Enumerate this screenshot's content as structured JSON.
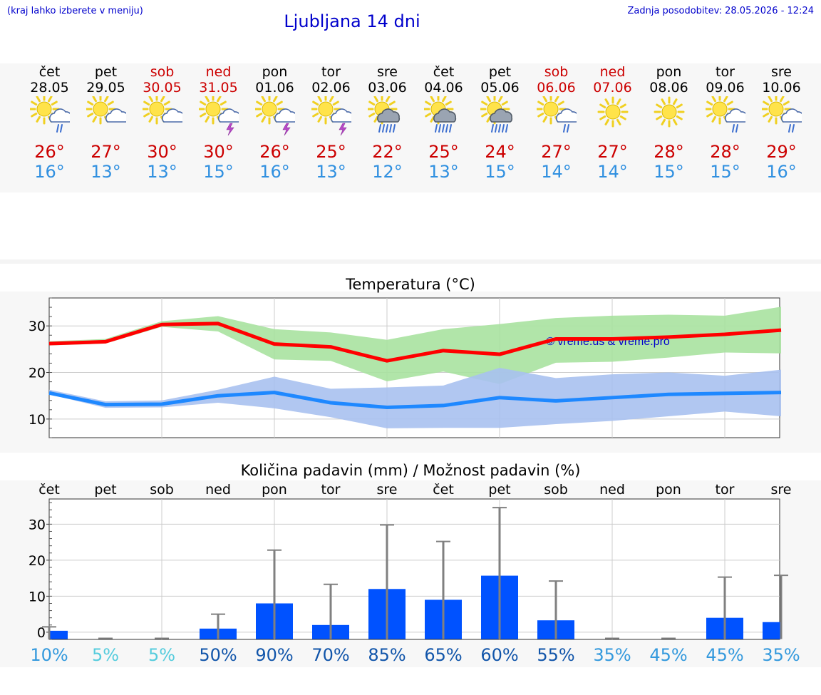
{
  "header": {
    "note": "(kraj lahko izberete v meniju)",
    "title": "Ljubljana 14 dni",
    "updated": "Zadnja posodobitev: 28.05.2026 - 12:24"
  },
  "colors": {
    "link_blue": "#0000cc",
    "weekend_red": "#cc0000",
    "max_temp": "#cc0000",
    "min_temp": "#3090e0",
    "max_line": "#ff0000",
    "max_band": "#a8e2a0",
    "min_line": "#1e88ff",
    "min_band": "#a9c1f0",
    "precip_bar": "#0052ff",
    "error_bar": "#808080"
  },
  "days": [
    {
      "name": "čet",
      "date": "28.05",
      "weekend": false,
      "icon": "sun-cloud-rain-icon",
      "max": "26°",
      "min": "16°"
    },
    {
      "name": "pet",
      "date": "29.05",
      "weekend": false,
      "icon": "sun-cloud-icon",
      "max": "27°",
      "min": "13°"
    },
    {
      "name": "sob",
      "date": "30.05",
      "weekend": true,
      "icon": "sun-cloud-icon",
      "max": "30°",
      "min": "13°"
    },
    {
      "name": "ned",
      "date": "31.05",
      "weekend": true,
      "icon": "sun-cloud-thunder-icon",
      "max": "30°",
      "min": "15°"
    },
    {
      "name": "pon",
      "date": "01.06",
      "weekend": false,
      "icon": "sun-cloud-thunder-icon",
      "max": "26°",
      "min": "16°"
    },
    {
      "name": "tor",
      "date": "02.06",
      "weekend": false,
      "icon": "sun-cloud-thunder-icon",
      "max": "25°",
      "min": "13°"
    },
    {
      "name": "sre",
      "date": "03.06",
      "weekend": false,
      "icon": "sun-cloud-heavy-rain-icon",
      "max": "22°",
      "min": "12°"
    },
    {
      "name": "čet",
      "date": "04.06",
      "weekend": false,
      "icon": "sun-cloud-heavy-rain-icon",
      "max": "25°",
      "min": "13°"
    },
    {
      "name": "pet",
      "date": "05.06",
      "weekend": false,
      "icon": "sun-cloud-heavy-rain-icon",
      "max": "24°",
      "min": "15°"
    },
    {
      "name": "sob",
      "date": "06.06",
      "weekend": true,
      "icon": "sun-cloud-rain-icon",
      "max": "27°",
      "min": "14°"
    },
    {
      "name": "ned",
      "date": "07.06",
      "weekend": true,
      "icon": "sun-icon",
      "max": "27°",
      "min": "14°"
    },
    {
      "name": "pon",
      "date": "08.06",
      "weekend": false,
      "icon": "sun-icon",
      "max": "28°",
      "min": "15°"
    },
    {
      "name": "tor",
      "date": "09.06",
      "weekend": false,
      "icon": "sun-cloud-rain-icon",
      "max": "28°",
      "min": "15°"
    },
    {
      "name": "sre",
      "date": "10.06",
      "weekend": false,
      "icon": "sun-cloud-rain-icon",
      "max": "29°",
      "min": "16°"
    }
  ],
  "chart_data": [
    {
      "type": "line",
      "title": "Temperatura (°C)",
      "xlabel": "",
      "ylabel": "",
      "x": [
        "28.05",
        "29.05",
        "30.05",
        "31.05",
        "01.06",
        "02.06",
        "03.06",
        "04.06",
        "05.06",
        "06.06",
        "07.06",
        "08.06",
        "09.06",
        "10.06"
      ],
      "ylim": [
        6,
        36
      ],
      "yticks": [
        10,
        20,
        30
      ],
      "grid": true,
      "watermark": "© vreme.us & vreme.pro",
      "series": [
        {
          "values": [
            26.2,
            26.6,
            30.3,
            30.5,
            26.1,
            25.5,
            22.5,
            24.7,
            23.9,
            27.2,
            27.2,
            27.6,
            28.2,
            29.1
          ],
          "band_low": [
            25.8,
            26.2,
            29.8,
            28.8,
            22.8,
            22.5,
            18.1,
            20.2,
            17.5,
            22.1,
            22.3,
            23.2,
            24.3,
            24.1
          ],
          "band_high": [
            26.7,
            27.2,
            31.0,
            32.1,
            29.3,
            28.6,
            27.0,
            29.3,
            30.4,
            31.7,
            32.2,
            32.4,
            32.2,
            34.1
          ]
        },
        {
          "values": [
            15.6,
            13.1,
            13.2,
            15.0,
            15.7,
            13.5,
            12.5,
            12.9,
            14.6,
            13.9,
            14.6,
            15.3,
            15.5,
            15.7
          ],
          "band_low": [
            15.3,
            12.4,
            12.5,
            13.5,
            12.3,
            10.4,
            8.0,
            8.1,
            8.1,
            8.9,
            9.6,
            10.6,
            11.6,
            10.6
          ],
          "band_high": [
            16.3,
            13.8,
            14.0,
            16.3,
            19.1,
            16.5,
            16.8,
            17.2,
            21.0,
            18.8,
            19.6,
            20.0,
            19.3,
            20.6
          ]
        }
      ]
    },
    {
      "type": "bar",
      "title": "Količina padavin (mm) / Možnost padavin (%)",
      "xlabel": "",
      "ylabel": "",
      "categories": [
        "čet",
        "pet",
        "sob",
        "ned",
        "pon",
        "tor",
        "sre",
        "čet",
        "pet",
        "sob",
        "ned",
        "pon",
        "tor",
        "sre"
      ],
      "ylim": [
        -2,
        37
      ],
      "yticks": [
        0,
        10,
        20,
        30
      ],
      "grid": true,
      "values": [
        0.4,
        0,
        0,
        1.0,
        8.0,
        2.0,
        12.0,
        9.0,
        15.7,
        3.3,
        0,
        0,
        4.0,
        2.8
      ],
      "error_high": [
        1.5,
        0,
        0,
        5.0,
        22.8,
        13.3,
        29.8,
        25.2,
        34.6,
        14.2,
        0,
        0,
        15.3,
        15.8
      ],
      "probabilities": [
        "10%",
        "5%",
        "5%",
        "50%",
        "90%",
        "70%",
        "85%",
        "65%",
        "60%",
        "55%",
        "35%",
        "45%",
        "45%",
        "35%"
      ],
      "probability_colors": [
        "#3399dd",
        "#55ccdd",
        "#55ccdd",
        "#1155aa",
        "#1155aa",
        "#1155aa",
        "#1155aa",
        "#1155aa",
        "#1155aa",
        "#1155aa",
        "#3399dd",
        "#3399dd",
        "#3399dd",
        "#3399dd"
      ]
    }
  ]
}
